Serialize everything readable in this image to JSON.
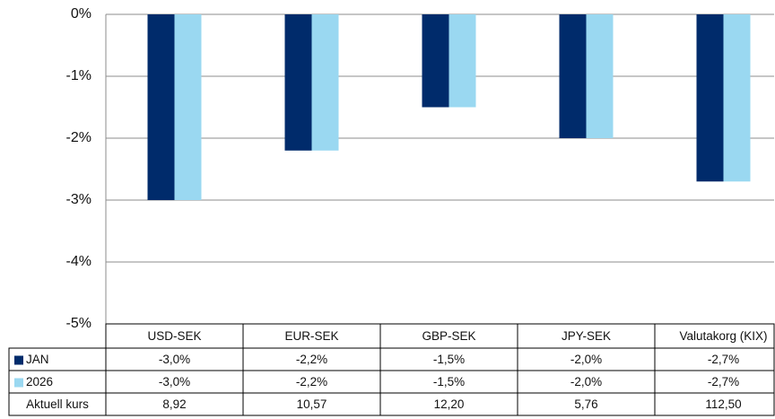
{
  "chart_data": {
    "type": "bar",
    "categories": [
      "USD-SEK",
      "EUR-SEK",
      "GBP-SEK",
      "JPY-SEK",
      "Valutakorg (KIX)"
    ],
    "series": [
      {
        "name": "JAN",
        "color": "#002b6b",
        "values": [
          -3.0,
          -2.2,
          -1.5,
          -2.0,
          -2.7
        ],
        "value_labels": [
          "-3,0%",
          "-2,2%",
          "-1,5%",
          "-2,0%",
          "-2,7%"
        ]
      },
      {
        "name": "2026",
        "color": "#9ad8f1",
        "values": [
          -3.0,
          -2.2,
          -1.5,
          -2.0,
          -2.7
        ],
        "value_labels": [
          "-3,0%",
          "-2,2%",
          "-1,5%",
          "-2,0%",
          "-2,7%"
        ]
      }
    ],
    "extra_rows": [
      {
        "name": "Aktuell kurs",
        "values": [
          8.92,
          10.57,
          12.2,
          5.76,
          112.5
        ],
        "value_labels": [
          "8,92",
          "10,57",
          "12,20",
          "5,76",
          "112,50"
        ]
      }
    ],
    "ylim": [
      -5,
      0
    ],
    "yticks": [
      {
        "value": 0,
        "label": "0%"
      },
      {
        "value": -1,
        "label": "-1%"
      },
      {
        "value": -2,
        "label": "-2%"
      },
      {
        "value": -3,
        "label": "-3%"
      },
      {
        "value": -4,
        "label": "-4%"
      },
      {
        "value": -5,
        "label": "-5%"
      }
    ],
    "grid": true
  }
}
